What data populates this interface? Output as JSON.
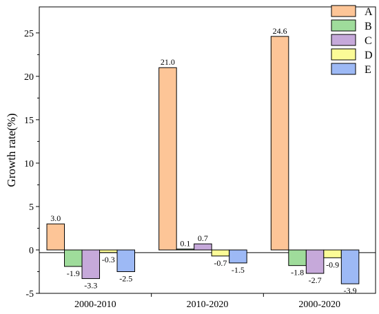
{
  "chart_data": {
    "type": "bar",
    "categories": [
      "2000-2010",
      "2010-2020",
      "2000-2020"
    ],
    "series": [
      {
        "name": "A",
        "values": [
          3.0,
          21.0,
          24.6
        ],
        "labels": [
          "3.0",
          "21.0",
          "24.6"
        ],
        "color": "#FDC597"
      },
      {
        "name": "B",
        "values": [
          -1.9,
          0.1,
          -1.8
        ],
        "labels": [
          "-1.9",
          "0.1",
          "-1.8"
        ],
        "color": "#9FDC9B"
      },
      {
        "name": "C",
        "values": [
          -3.3,
          0.7,
          -2.7
        ],
        "labels": [
          "-3.3",
          "0.7",
          "-2.7"
        ],
        "color": "#C6A9DA"
      },
      {
        "name": "D",
        "values": [
          -0.3,
          -0.7,
          -0.9
        ],
        "labels": [
          "-0.3",
          "-0.7",
          "-0.9"
        ],
        "color": "#FBFB97"
      },
      {
        "name": "E",
        "values": [
          -2.5,
          -1.5,
          -3.9
        ],
        "labels": [
          "-2.5",
          "-1.5",
          "-3.9"
        ],
        "color": "#9DB9F5"
      }
    ],
    "xlabel": "",
    "ylabel": "Growth rate(%)",
    "ylim": [
      -5,
      28
    ],
    "yticks": [
      -5,
      0,
      5,
      10,
      15,
      20,
      25
    ],
    "ytick_labels": [
      "-5",
      "0",
      "5",
      "10",
      "15",
      "20",
      "25"
    ],
    "grid": false,
    "legend_position": "top-right"
  }
}
